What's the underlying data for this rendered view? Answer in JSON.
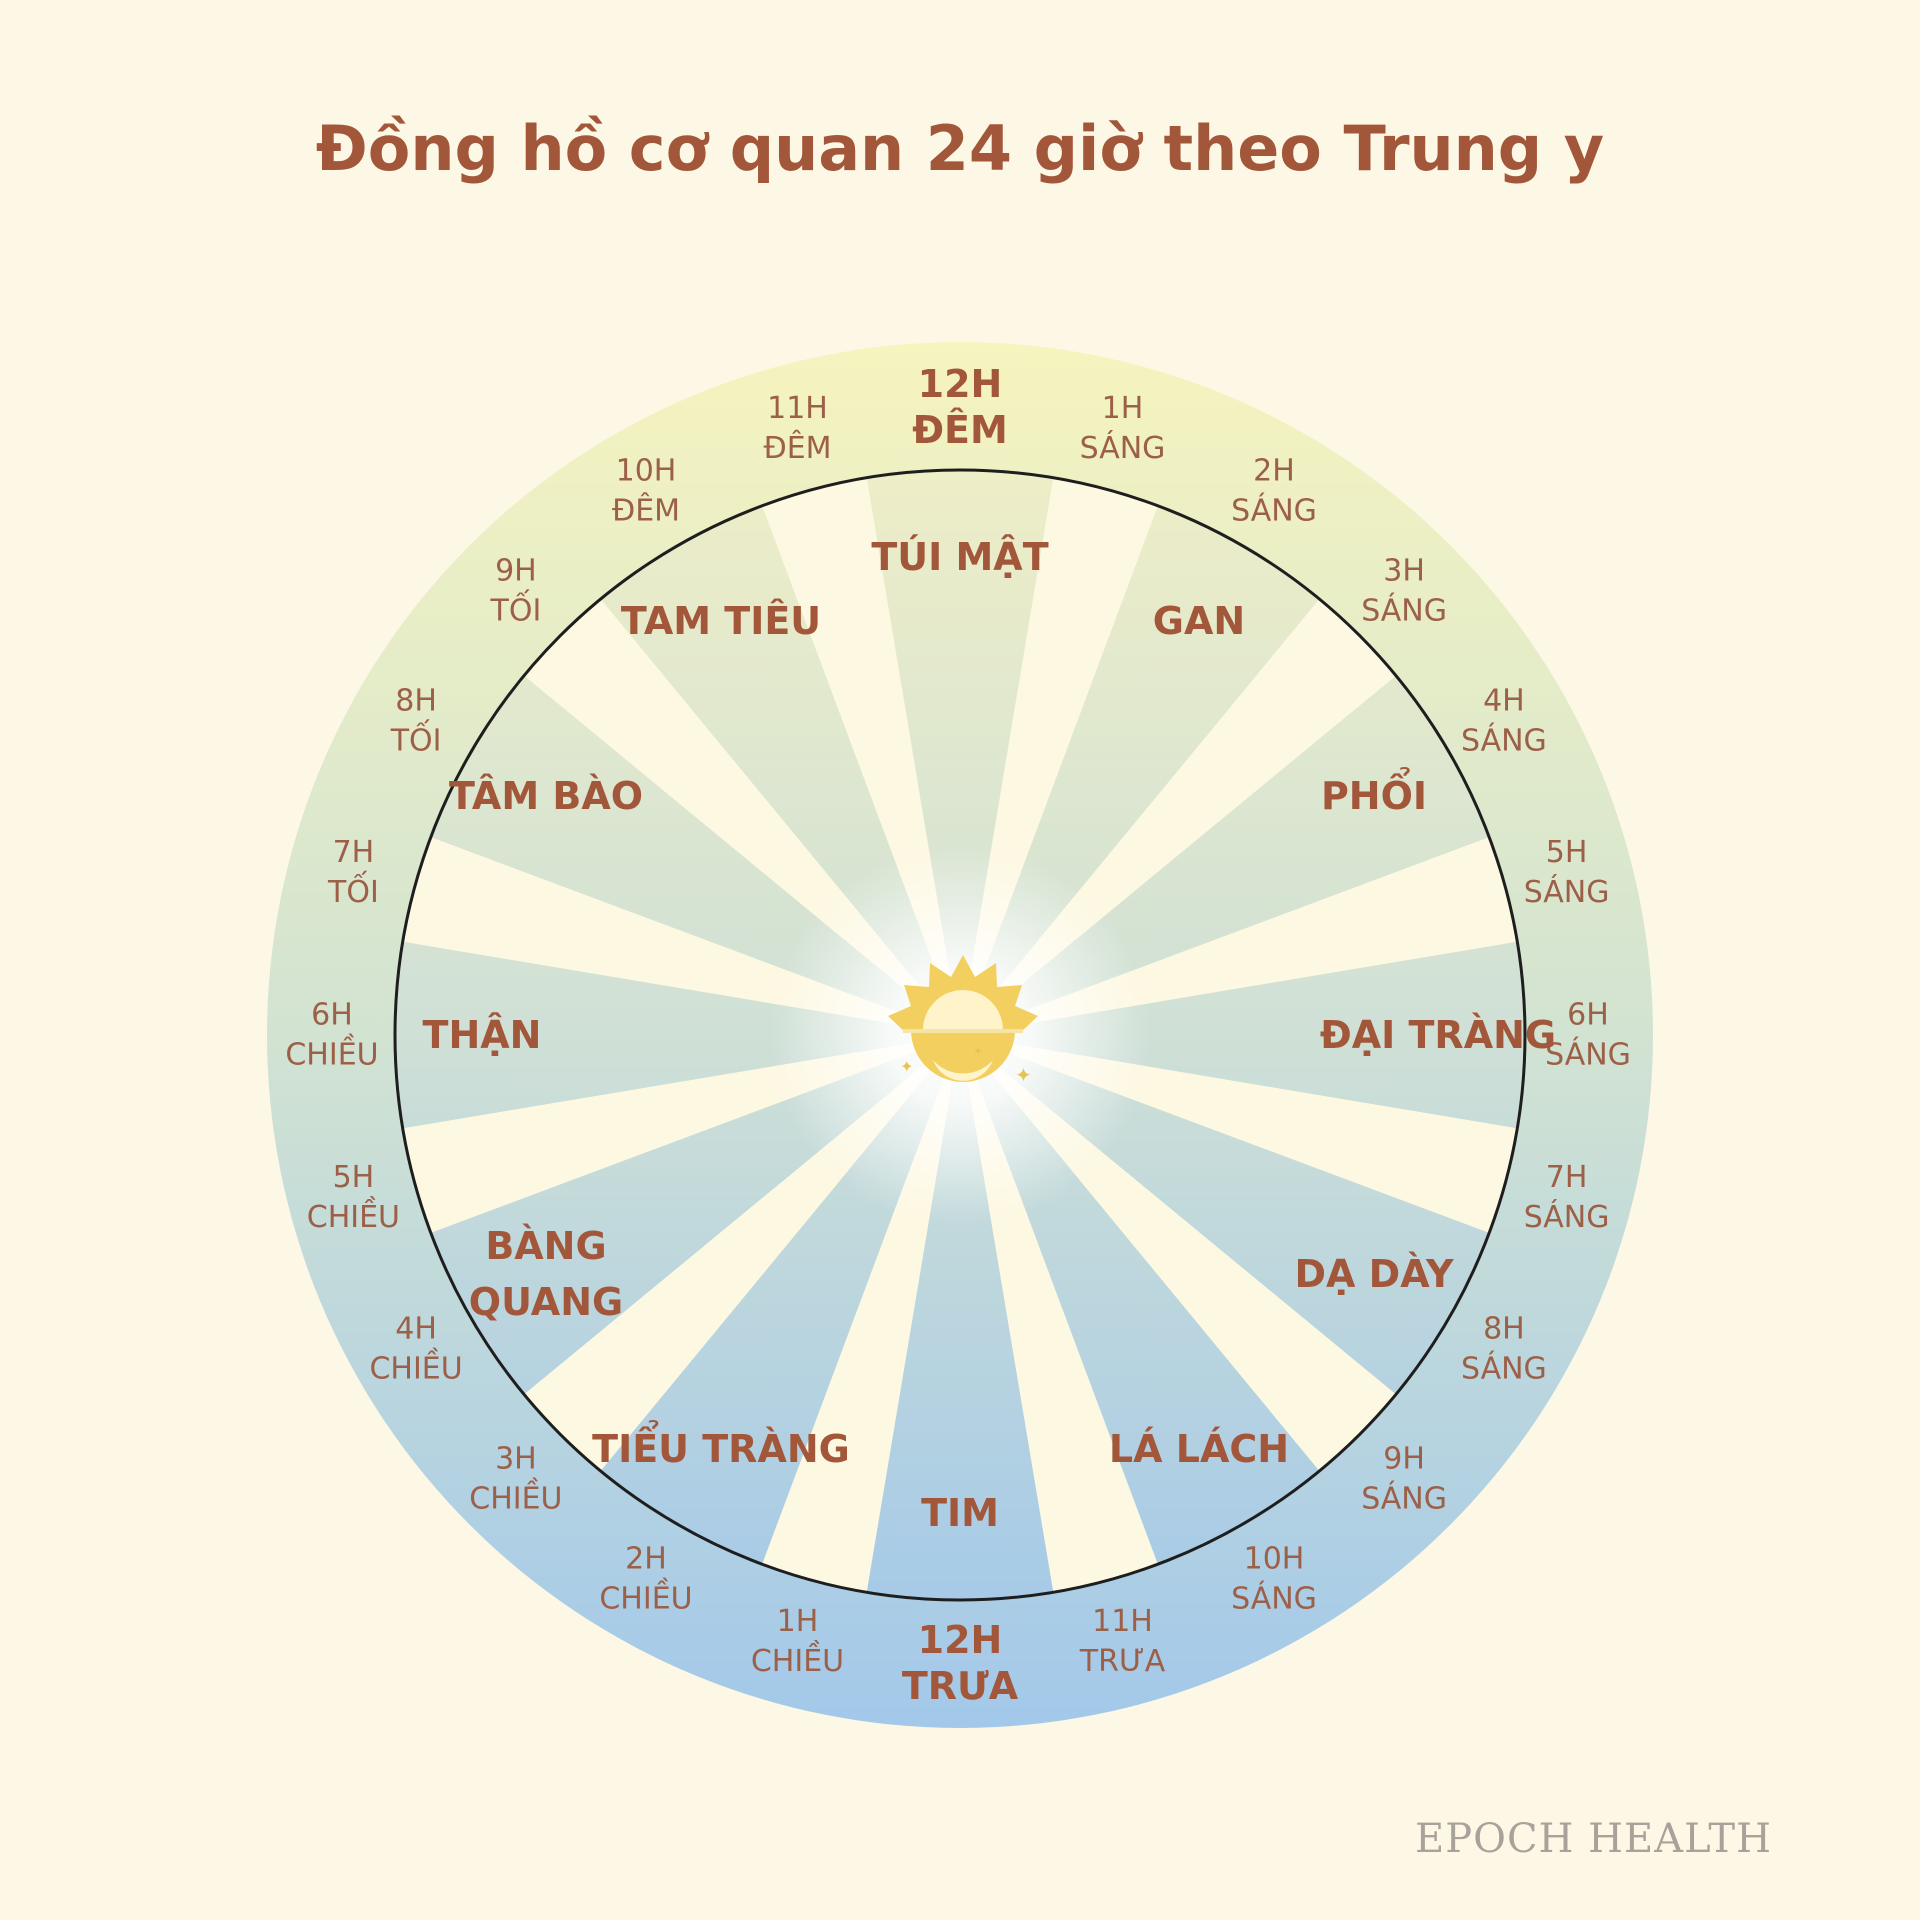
{
  "title": "Đồng hồ cơ quan 24 giờ theo Trung y",
  "brand": "EPOCH HEALTH",
  "colors": {
    "text": "#a3573a",
    "top": "#f4f3bf",
    "bottom": "#a2c8ea",
    "ray": "#fdf8e2"
  },
  "icons": {
    "center": "sun-moon-icon"
  },
  "hour_labels": [
    {
      "line1": "12H",
      "line2": "ĐÊM",
      "major": true
    },
    {
      "line1": "1H",
      "line2": "SÁNG"
    },
    {
      "line1": "2H",
      "line2": "SÁNG"
    },
    {
      "line1": "3H",
      "line2": "SÁNG"
    },
    {
      "line1": "4H",
      "line2": "SÁNG"
    },
    {
      "line1": "5H",
      "line2": "SÁNG"
    },
    {
      "line1": "6H",
      "line2": "SÁNG"
    },
    {
      "line1": "7H",
      "line2": "SÁNG"
    },
    {
      "line1": "8H",
      "line2": "SÁNG"
    },
    {
      "line1": "9H",
      "line2": "SÁNG"
    },
    {
      "line1": "10H",
      "line2": "SÁNG"
    },
    {
      "line1": "11H",
      "line2": "TRƯA"
    },
    {
      "line1": "12H",
      "line2": "TRƯA",
      "major": true
    },
    {
      "line1": "1H",
      "line2": "CHIỀU"
    },
    {
      "line1": "2H",
      "line2": "CHIỀU"
    },
    {
      "line1": "3H",
      "line2": "CHIỀU"
    },
    {
      "line1": "4H",
      "line2": "CHIỀU"
    },
    {
      "line1": "5H",
      "line2": "CHIỀU"
    },
    {
      "line1": "6H",
      "line2": "CHIỀU"
    },
    {
      "line1": "7H",
      "line2": "TỐI"
    },
    {
      "line1": "8H",
      "line2": "TỐI"
    },
    {
      "line1": "9H",
      "line2": "TỐI"
    },
    {
      "line1": "10H",
      "line2": "ĐÊM"
    },
    {
      "line1": "11H",
      "line2": "ĐÊM"
    }
  ],
  "organs": [
    {
      "name": [
        "TÚI MẬT"
      ],
      "from": "11H ĐÊM",
      "to": "1H SÁNG"
    },
    {
      "name": [
        "GAN"
      ],
      "from": "1H SÁNG",
      "to": "3H SÁNG"
    },
    {
      "name": [
        "PHỔI"
      ],
      "from": "3H SÁNG",
      "to": "5H SÁNG"
    },
    {
      "name": [
        "ĐẠI TRÀNG"
      ],
      "from": "5H SÁNG",
      "to": "7H SÁNG"
    },
    {
      "name": [
        "DẠ DÀY"
      ],
      "from": "7H SÁNG",
      "to": "9H SÁNG"
    },
    {
      "name": [
        "LÁ LÁCH"
      ],
      "from": "9H SÁNG",
      "to": "11H TRƯA"
    },
    {
      "name": [
        "TIM"
      ],
      "from": "11H TRƯA",
      "to": "1H CHIỀU"
    },
    {
      "name": [
        "TIỂU TRÀNG"
      ],
      "from": "1H CHIỀU",
      "to": "3H CHIỀU"
    },
    {
      "name": [
        "BÀNG",
        "QUANG"
      ],
      "from": "3H CHIỀU",
      "to": "5H CHIỀU"
    },
    {
      "name": [
        "THẬN"
      ],
      "from": "5H CHIỀU",
      "to": "7H TỐI"
    },
    {
      "name": [
        "TÂM BÀO"
      ],
      "from": "7H TỐI",
      "to": "9H TỐI"
    },
    {
      "name": [
        "TAM TIÊU"
      ],
      "from": "9H TỐI",
      "to": "11H ĐÊM"
    }
  ]
}
